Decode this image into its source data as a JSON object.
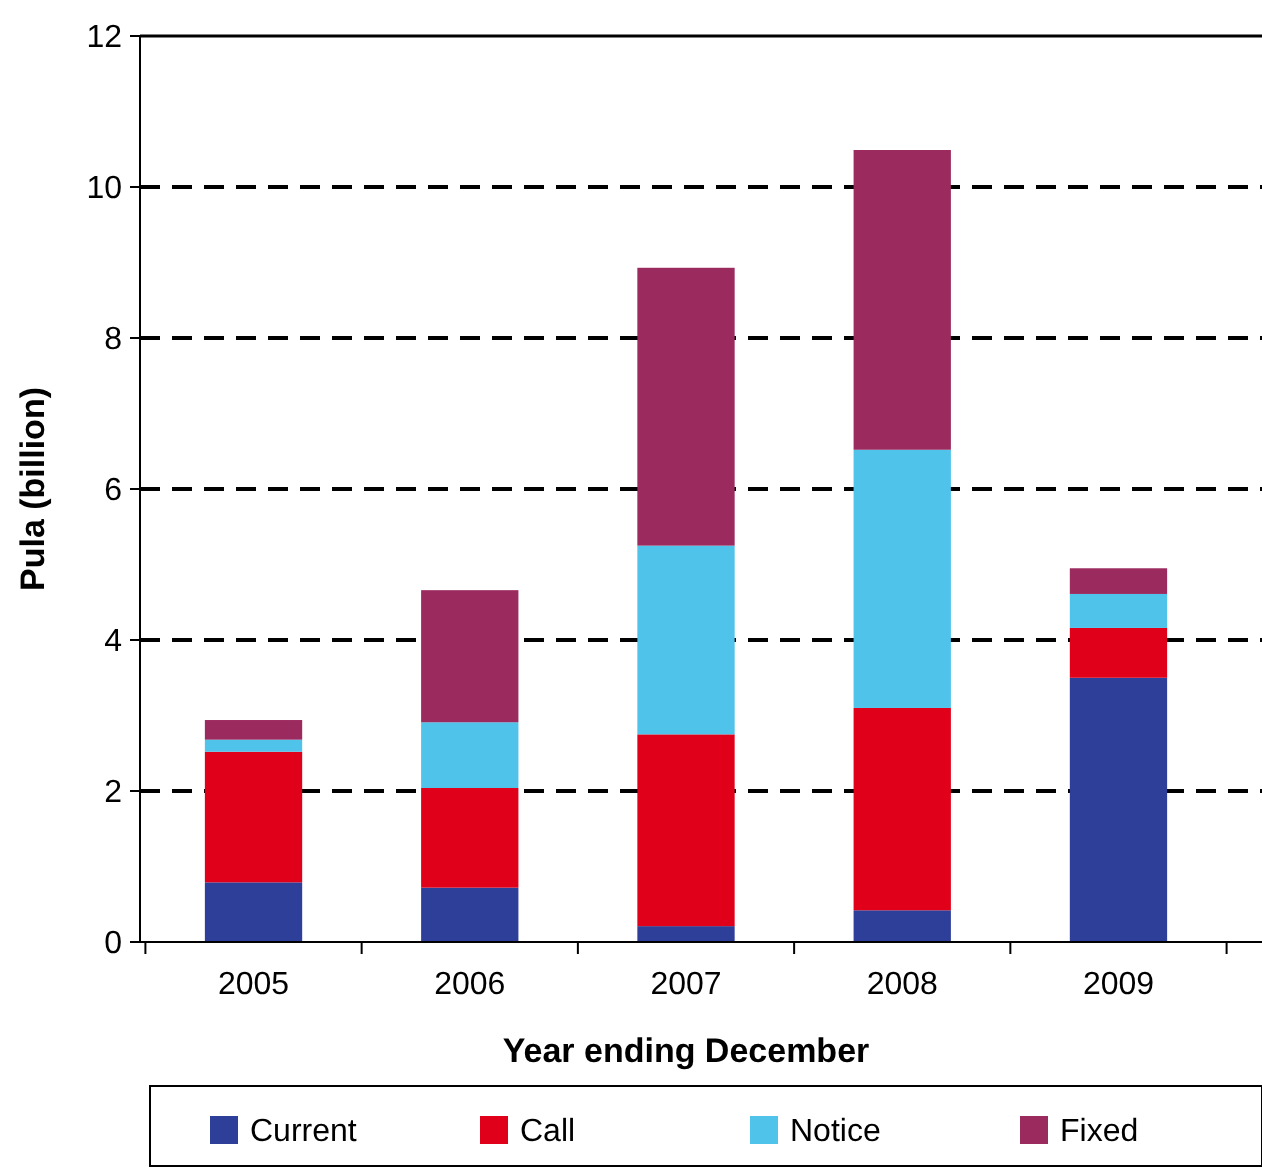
{
  "chart_data": {
    "type": "bar",
    "stacked": true,
    "xlabel": "Year ending December",
    "ylabel": "Pula (billion)",
    "categories": [
      "2005",
      "2006",
      "2007",
      "2008",
      "2009"
    ],
    "series": [
      {
        "name": "Current",
        "color": "#2e3f9a",
        "values": [
          0.79,
          0.72,
          0.21,
          0.42,
          3.5
        ]
      },
      {
        "name": "Call",
        "color": "#e1001a",
        "values": [
          1.73,
          1.32,
          2.54,
          2.68,
          0.66
        ]
      },
      {
        "name": "Notice",
        "color": "#4fc3ea",
        "values": [
          0.16,
          0.87,
          2.5,
          3.42,
          0.45
        ]
      },
      {
        "name": "Fixed",
        "color": "#9b2a5e",
        "values": [
          0.26,
          1.75,
          3.68,
          3.97,
          0.34
        ]
      }
    ],
    "ylim": [
      0,
      12
    ],
    "yticks": [
      0,
      2,
      4,
      6,
      8,
      10,
      12
    ],
    "grid": "y",
    "legend": "bottom"
  }
}
